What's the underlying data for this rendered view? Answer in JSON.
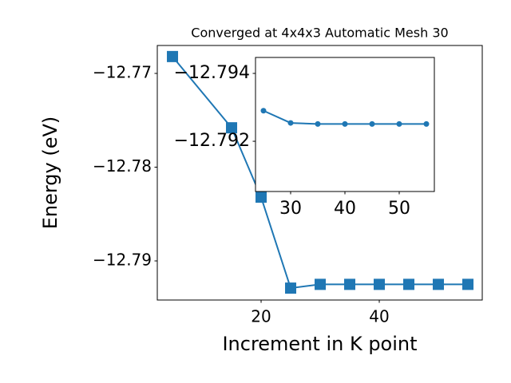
{
  "chart_data": [
    {
      "type": "line",
      "title": "Converged at 4x4x3 Automatic Mesh 30",
      "xlabel": "Increment in K point",
      "ylabel": "Energy (eV)",
      "x": [
        5,
        15,
        20,
        25,
        30,
        35,
        40,
        45,
        50,
        55
      ],
      "series": [
        {
          "color": "#1f77b4",
          "marker": "square",
          "values": [
            -12.7682,
            -12.7758,
            -12.7832,
            -12.7929,
            -12.7925,
            -12.7925,
            -12.7925,
            -12.7925,
            -12.7925,
            -12.7925
          ]
        }
      ],
      "xlim": [
        2.43,
        57.43
      ],
      "xticks": [
        20,
        40
      ],
      "ylim": [
        -12.79417,
        -12.76702
      ],
      "yticks": [
        {
          "value": -12.79,
          "label": "−12.79"
        },
        {
          "value": -12.78,
          "label": "−12.78"
        },
        {
          "value": -12.77,
          "label": "−12.77"
        }
      ]
    },
    {
      "type": "line",
      "x": [
        25,
        30,
        35,
        40,
        45,
        50,
        55
      ],
      "series": [
        {
          "color": "#1f77b4",
          "marker": "circle",
          "values": [
            -12.7929,
            -12.79254,
            -12.79251,
            -12.79251,
            -12.79251,
            -12.79251,
            -12.79251
          ]
        }
      ],
      "xlim": [
        23.53,
        56.47
      ],
      "xticks": [
        30,
        40,
        50
      ],
      "ylim": [
        -12.79052,
        -12.79447
      ],
      "yticks": [
        {
          "value": -12.794,
          "label": "−12.794"
        },
        {
          "value": -12.792,
          "label": "−12.792"
        }
      ]
    }
  ]
}
